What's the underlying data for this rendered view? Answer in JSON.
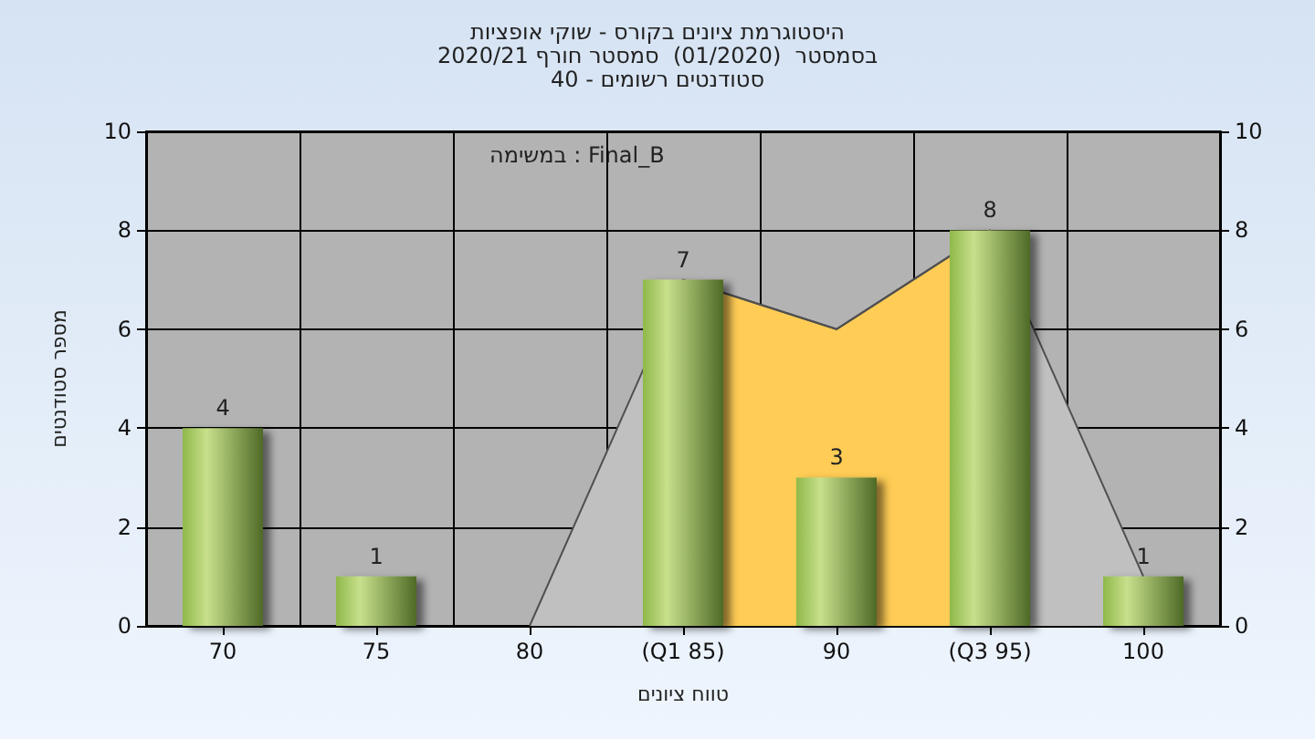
{
  "chart_data": {
    "type": "bar",
    "title": "היסטוגרמת ציונים בקורס - שוקי אופציות",
    "subtitle": "בסמסטר  (01/2020)  סמסטר חורף 2020/21\nסטודנטים רשומים - 40",
    "xlabel": "טווח ציונים",
    "ylabel": "מספר סטודנטים",
    "categories": [
      "70",
      "75",
      "80",
      "(Q1 85)",
      "90",
      "(Q3 95)",
      "100"
    ],
    "series": [
      {
        "type": "area",
        "color": "#c0c0c0",
        "values": [
          null,
          null,
          0,
          7,
          6,
          8,
          1
        ]
      },
      {
        "type": "area",
        "color": "#ffcc55",
        "values": [
          null,
          null,
          null,
          7,
          6,
          8,
          null
        ]
      },
      {
        "color": "#8fb84a",
        "values": [
          4,
          1,
          0,
          7,
          3,
          8,
          1
        ],
        "value_labels": [
          "4",
          "1",
          null,
          "7",
          "3",
          "8",
          "1"
        ]
      }
    ],
    "ylim": [
      0,
      10
    ],
    "yticks": [
      0,
      2,
      4,
      6,
      8,
      10
    ],
    "y2lim": [
      0,
      10
    ],
    "y2ticks": [
      0,
      2,
      4,
      6,
      8,
      10
    ],
    "grid": true,
    "annotations": [
      "במשימה : Final_B"
    ]
  }
}
